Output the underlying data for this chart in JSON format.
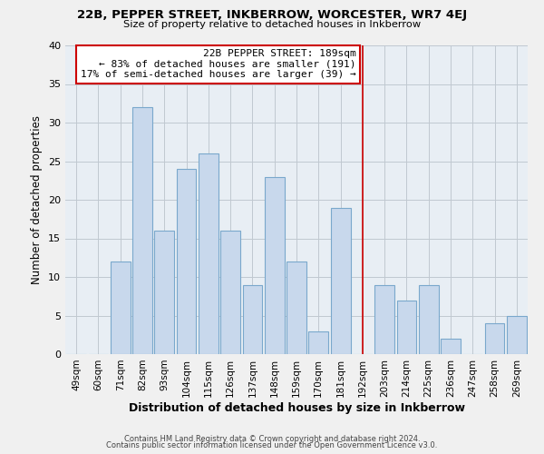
{
  "title": "22B, PEPPER STREET, INKBERROW, WORCESTER, WR7 4EJ",
  "subtitle": "Size of property relative to detached houses in Inkberrow",
  "xlabel": "Distribution of detached houses by size in Inkberrow",
  "ylabel": "Number of detached properties",
  "categories": [
    "49sqm",
    "60sqm",
    "71sqm",
    "82sqm",
    "93sqm",
    "104sqm",
    "115sqm",
    "126sqm",
    "137sqm",
    "148sqm",
    "159sqm",
    "170sqm",
    "181sqm",
    "192sqm",
    "203sqm",
    "214sqm",
    "225sqm",
    "236sqm",
    "247sqm",
    "258sqm",
    "269sqm"
  ],
  "values": [
    0,
    0,
    12,
    32,
    16,
    24,
    26,
    16,
    9,
    23,
    12,
    3,
    19,
    0,
    9,
    7,
    9,
    2,
    0,
    4,
    5
  ],
  "bar_color": "#c8d8ec",
  "bar_edge_color": "#7aa8cc",
  "reference_line_color": "#cc0000",
  "annotation_box_title": "22B PEPPER STREET: 189sqm",
  "annotation_line1": "← 83% of detached houses are smaller (191)",
  "annotation_line2": "17% of semi-detached houses are larger (39) →",
  "annotation_box_edge_color": "#cc0000",
  "annotation_box_face_color": "white",
  "ylim": [
    0,
    40
  ],
  "yticks": [
    0,
    5,
    10,
    15,
    20,
    25,
    30,
    35,
    40
  ],
  "footer_line1": "Contains HM Land Registry data © Crown copyright and database right 2024.",
  "footer_line2": "Contains public sector information licensed under the Open Government Licence v3.0.",
  "background_color": "#f0f0f0",
  "plot_background_color": "#e8eef4",
  "grid_color": "#c0c8d0"
}
